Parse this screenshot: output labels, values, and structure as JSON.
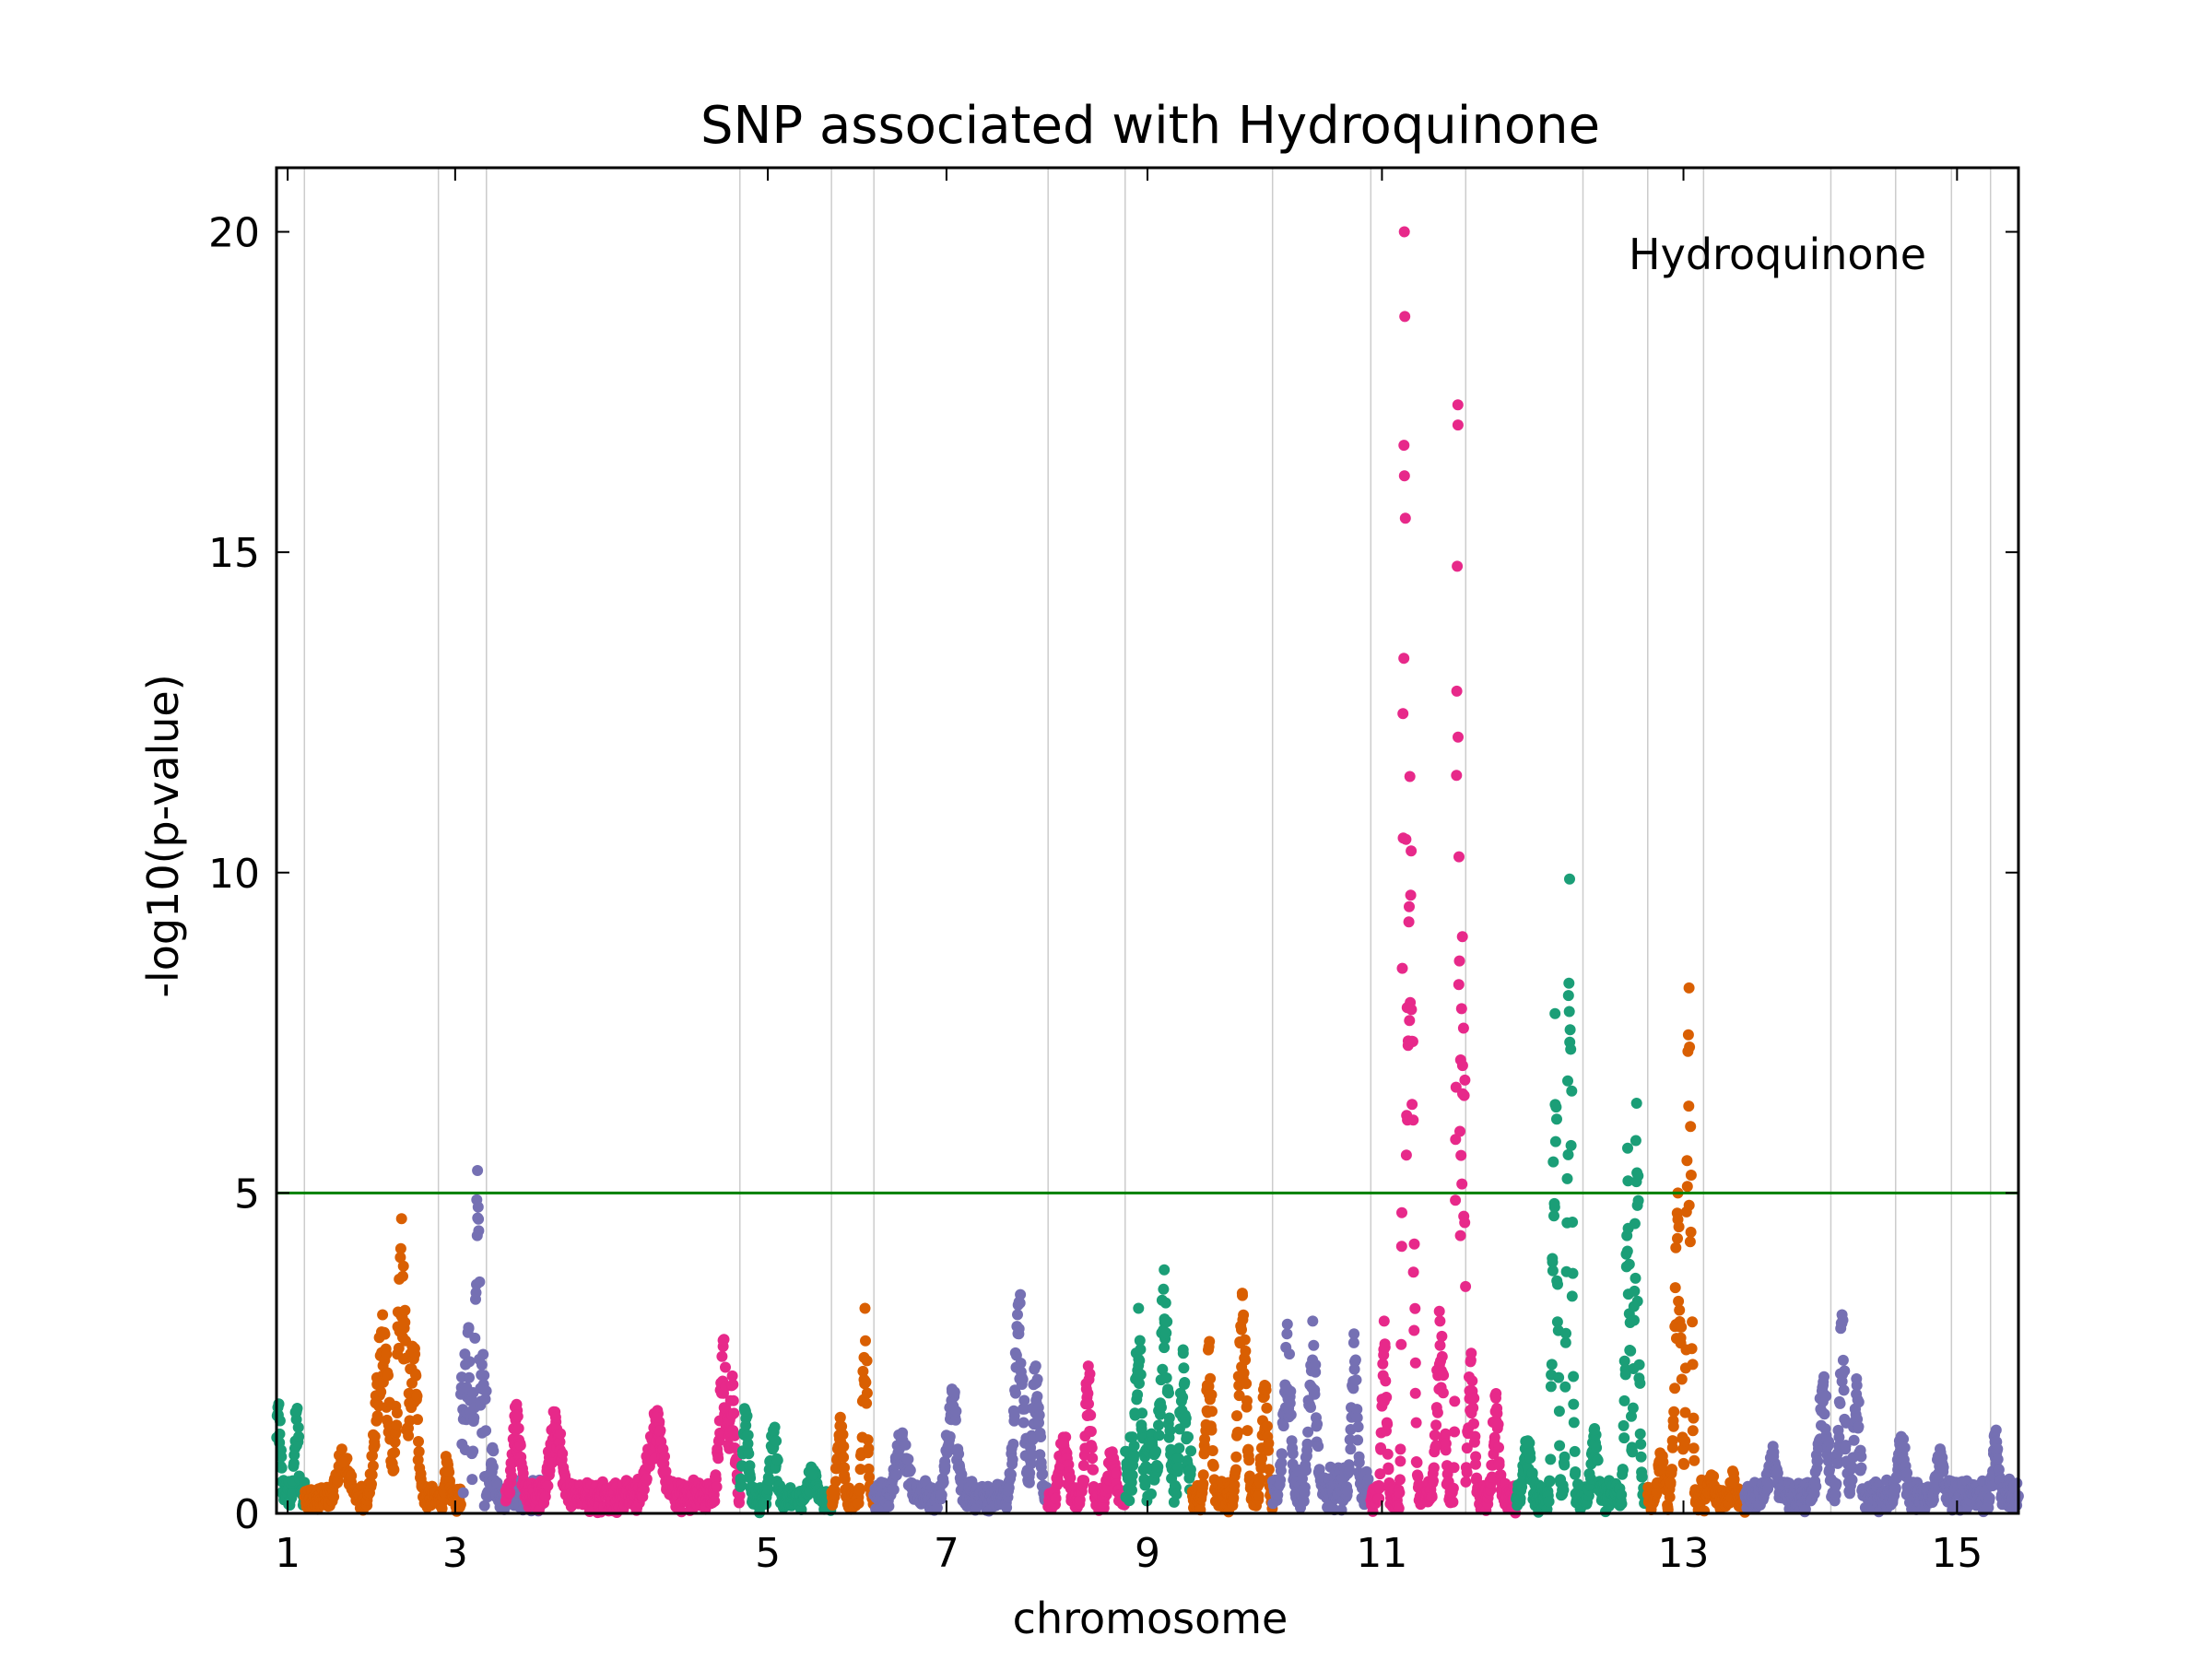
{
  "chart_data": {
    "type": "scatter",
    "title": "SNP associated with Hydroquinone",
    "xlabel": "chromosome",
    "ylabel": "-log10(p-value)",
    "legend_label": "Hydroquinone",
    "legend_position": "top-right",
    "xlim": [
      0.9,
      16.5
    ],
    "ylim": [
      0,
      21
    ],
    "y_ticks": [
      0,
      5,
      10,
      15,
      20
    ],
    "x_ticks": [
      {
        "label": "1",
        "x": 1.0
      },
      {
        "label": "3",
        "x": 2.5
      },
      {
        "label": "5",
        "x": 5.3
      },
      {
        "label": "7",
        "x": 6.9
      },
      {
        "label": "9",
        "x": 8.7
      },
      {
        "label": "11",
        "x": 10.8
      },
      {
        "label": "13",
        "x": 13.5
      },
      {
        "label": "15",
        "x": 15.95
      }
    ],
    "chromosome_boundaries": [
      1.15,
      2.35,
      2.78,
      5.05,
      5.87,
      6.25,
      7.81,
      8.5,
      9.82,
      10.7,
      11.55,
      12.6,
      13.18,
      13.68,
      14.82,
      15.4,
      15.9,
      16.25
    ],
    "threshold": 5,
    "threshold_color": "#008000",
    "colors": [
      "#1b9e77",
      "#d95f02",
      "#7570b3",
      "#e7298a"
    ],
    "segments": [
      {
        "start": 0.9,
        "end": 1.15,
        "color": 0,
        "peaks": [
          [
            0.92,
            1.7,
            0.03
          ],
          [
            1.08,
            1.6,
            0.03
          ]
        ],
        "base": 0.3
      },
      {
        "start": 1.15,
        "end": 2.35,
        "color": 1,
        "peaks": [
          [
            1.5,
            0.8,
            0.1
          ],
          [
            1.85,
            3.1,
            0.08
          ],
          [
            2.02,
            4.6,
            0.05
          ],
          [
            2.12,
            2.6,
            0.06
          ]
        ],
        "base": 0.2
      },
      {
        "start": 2.35,
        "end": 2.55,
        "color": 1,
        "peaks": [
          [
            2.43,
            0.8,
            0.03
          ]
        ],
        "base": 0.15
      },
      {
        "start": 2.55,
        "end": 2.78,
        "color": 2,
        "peaks": [
          [
            2.62,
            2.9,
            0.03
          ],
          [
            2.7,
            5.35,
            0.03
          ]
        ],
        "base": 2.4
      },
      {
        "start": 2.78,
        "end": 3.3,
        "color": 2,
        "peaks": [
          [
            2.83,
            1.0,
            0.03
          ]
        ],
        "base": 0.3
      },
      {
        "start": 2.95,
        "end": 5.05,
        "color": 3,
        "peaks": [
          [
            3.05,
            1.7,
            0.05
          ],
          [
            3.4,
            1.5,
            0.08
          ],
          [
            4.3,
            1.5,
            0.1
          ],
          [
            4.9,
            2.7,
            0.05
          ],
          [
            4.98,
            2.0,
            0.04
          ]
        ],
        "base": 0.3
      },
      {
        "start": 5.05,
        "end": 5.87,
        "color": 0,
        "peaks": [
          [
            5.1,
            1.6,
            0.04
          ],
          [
            5.35,
            1.3,
            0.05
          ],
          [
            5.7,
            0.6,
            0.06
          ]
        ],
        "base": 0.2
      },
      {
        "start": 5.87,
        "end": 6.25,
        "color": 1,
        "peaks": [
          [
            5.95,
            1.5,
            0.04
          ],
          [
            6.17,
            3.2,
            0.03
          ]
        ],
        "base": 0.2
      },
      {
        "start": 6.25,
        "end": 7.81,
        "color": 2,
        "peaks": [
          [
            6.5,
            1.2,
            0.08
          ],
          [
            6.95,
            1.9,
            0.07
          ],
          [
            7.55,
            3.3,
            0.06
          ],
          [
            7.7,
            2.3,
            0.05
          ]
        ],
        "base": 0.3
      },
      {
        "start": 7.81,
        "end": 8.5,
        "color": 3,
        "peaks": [
          [
            7.95,
            1.1,
            0.06
          ],
          [
            8.17,
            2.3,
            0.04
          ],
          [
            8.38,
            0.9,
            0.05
          ]
        ],
        "base": 0.2
      },
      {
        "start": 8.5,
        "end": 9.1,
        "color": 0,
        "peaks": [
          [
            8.62,
            3.2,
            0.04
          ],
          [
            8.85,
            3.8,
            0.05
          ],
          [
            9.02,
            2.5,
            0.04
          ]
        ],
        "base": 1.0
      },
      {
        "start": 9.1,
        "end": 9.82,
        "color": 1,
        "peaks": [
          [
            9.25,
            2.6,
            0.04
          ],
          [
            9.55,
            3.4,
            0.05
          ],
          [
            9.75,
            2.0,
            0.04
          ]
        ],
        "base": 0.3
      },
      {
        "start": 9.82,
        "end": 10.7,
        "color": 2,
        "peaks": [
          [
            9.95,
            2.8,
            0.05
          ],
          [
            10.18,
            3.0,
            0.05
          ],
          [
            10.55,
            2.8,
            0.04
          ]
        ],
        "base": 0.5
      },
      {
        "start": 10.7,
        "end": 11.55,
        "color": 3,
        "peaks": [
          [
            10.82,
            3.0,
            0.03
          ],
          [
            11.0,
            20.0,
            0.02
          ],
          [
            11.05,
            11.5,
            0.04
          ],
          [
            11.48,
            17.3,
            0.02
          ],
          [
            11.52,
            9.0,
            0.04
          ],
          [
            11.32,
            3.0,
            0.05
          ]
        ],
        "base": 0.3
      },
      {
        "start": 11.55,
        "end": 12.0,
        "color": 3,
        "peaks": [
          [
            11.6,
            2.5,
            0.04
          ],
          [
            11.82,
            1.8,
            0.04
          ]
        ],
        "base": 0.3
      },
      {
        "start": 12.0,
        "end": 12.6,
        "color": 0,
        "peaks": [
          [
            12.1,
            1.1,
            0.05
          ],
          [
            12.48,
            9.9,
            0.03
          ],
          [
            12.35,
            7.8,
            0.03
          ]
        ],
        "base": 0.3
      },
      {
        "start": 12.6,
        "end": 13.18,
        "color": 0,
        "peaks": [
          [
            12.7,
            1.3,
            0.04
          ],
          [
            13.08,
            6.4,
            0.03
          ],
          [
            13.0,
            5.7,
            0.03
          ]
        ],
        "base": 0.3
      },
      {
        "start": 13.18,
        "end": 13.68,
        "color": 1,
        "peaks": [
          [
            13.3,
            0.9,
            0.04
          ],
          [
            13.55,
            8.2,
            0.03
          ],
          [
            13.45,
            5.0,
            0.04
          ]
        ],
        "base": 0.3
      },
      {
        "start": 13.68,
        "end": 14.05,
        "color": 1,
        "peaks": [
          [
            13.75,
            0.6,
            0.04
          ],
          [
            13.95,
            0.5,
            0.04
          ]
        ],
        "base": 0.15
      },
      {
        "start": 14.05,
        "end": 15.2,
        "color": 2,
        "peaks": [
          [
            14.3,
            0.9,
            0.06
          ],
          [
            14.75,
            2.0,
            0.06
          ],
          [
            14.92,
            3.1,
            0.04
          ],
          [
            15.05,
            2.1,
            0.04
          ]
        ],
        "base": 0.3
      },
      {
        "start": 15.2,
        "end": 16.5,
        "color": 2,
        "peaks": [
          [
            15.45,
            1.2,
            0.05
          ],
          [
            15.8,
            0.9,
            0.05
          ],
          [
            16.3,
            1.3,
            0.04
          ]
        ],
        "base": 0.3
      }
    ]
  }
}
